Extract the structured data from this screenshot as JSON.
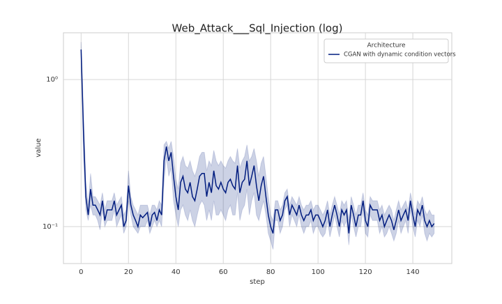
{
  "chart_data": {
    "type": "line",
    "title": "Web_Attack___Sql_Injection (log)",
    "xlabel": "step",
    "ylabel": "value",
    "x": [
      0,
      1,
      2,
      3,
      4,
      5,
      6,
      7,
      8,
      9,
      10,
      11,
      12,
      13,
      14,
      15,
      16,
      17,
      18,
      19,
      20,
      21,
      22,
      23,
      24,
      25,
      26,
      27,
      28,
      29,
      30,
      31,
      32,
      33,
      34,
      35,
      36,
      37,
      38,
      39,
      40,
      41,
      42,
      43,
      44,
      45,
      46,
      47,
      48,
      49,
      50,
      51,
      52,
      53,
      54,
      55,
      56,
      57,
      58,
      59,
      60,
      61,
      62,
      63,
      64,
      65,
      66,
      67,
      68,
      69,
      70,
      71,
      72,
      73,
      74,
      75,
      76,
      77,
      78,
      79,
      80,
      81,
      82,
      83,
      84,
      85,
      86,
      87,
      88,
      89,
      90,
      91,
      92,
      93,
      94,
      95,
      96,
      97,
      98,
      99,
      100,
      101,
      102,
      103,
      104,
      105,
      106,
      107,
      108,
      109,
      110,
      111,
      112,
      113,
      114,
      115,
      116,
      117,
      118,
      119,
      120,
      121,
      122,
      123,
      124,
      125,
      126,
      127,
      128,
      129,
      130,
      131,
      132,
      133,
      134,
      135,
      136,
      137,
      138,
      139,
      140,
      141,
      142,
      143,
      144,
      145,
      146,
      147,
      148,
      149
    ],
    "series": [
      {
        "name": "CGAN with dynamic condition vectors",
        "color": "#001c7f",
        "values": [
          1.6,
          0.45,
          0.16,
          0.12,
          0.18,
          0.14,
          0.14,
          0.13,
          0.12,
          0.15,
          0.11,
          0.13,
          0.13,
          0.13,
          0.15,
          0.12,
          0.13,
          0.14,
          0.1,
          0.11,
          0.19,
          0.14,
          0.12,
          0.11,
          0.1,
          0.12,
          0.115,
          0.12,
          0.125,
          0.1,
          0.12,
          0.125,
          0.11,
          0.13,
          0.12,
          0.28,
          0.35,
          0.28,
          0.32,
          0.22,
          0.16,
          0.13,
          0.2,
          0.22,
          0.18,
          0.17,
          0.2,
          0.16,
          0.15,
          0.18,
          0.22,
          0.23,
          0.23,
          0.16,
          0.2,
          0.17,
          0.24,
          0.19,
          0.18,
          0.2,
          0.18,
          0.17,
          0.2,
          0.21,
          0.19,
          0.18,
          0.26,
          0.17,
          0.2,
          0.21,
          0.28,
          0.19,
          0.22,
          0.26,
          0.19,
          0.15,
          0.19,
          0.22,
          0.16,
          0.12,
          0.1,
          0.09,
          0.13,
          0.13,
          0.11,
          0.12,
          0.15,
          0.16,
          0.12,
          0.14,
          0.13,
          0.12,
          0.14,
          0.12,
          0.11,
          0.12,
          0.12,
          0.13,
          0.11,
          0.12,
          0.12,
          0.11,
          0.1,
          0.11,
          0.13,
          0.1,
          0.12,
          0.14,
          0.12,
          0.1,
          0.13,
          0.12,
          0.13,
          0.09,
          0.14,
          0.12,
          0.1,
          0.12,
          0.12,
          0.15,
          0.11,
          0.1,
          0.14,
          0.13,
          0.13,
          0.13,
          0.11,
          0.12,
          0.1,
          0.11,
          0.12,
          0.11,
          0.095,
          0.11,
          0.13,
          0.11,
          0.12,
          0.13,
          0.11,
          0.15,
          0.12,
          0.1,
          0.13,
          0.12,
          0.14,
          0.11,
          0.1,
          0.11,
          0.1,
          0.105
        ],
        "lower": [
          1.45,
          0.3,
          0.13,
          0.11,
          0.14,
          0.12,
          0.12,
          0.11,
          0.095,
          0.13,
          0.1,
          0.11,
          0.11,
          0.11,
          0.13,
          0.1,
          0.11,
          0.12,
          0.09,
          0.1,
          0.15,
          0.12,
          0.1,
          0.095,
          0.09,
          0.1,
          0.1,
          0.1,
          0.11,
          0.09,
          0.1,
          0.11,
          0.1,
          0.11,
          0.1,
          0.2,
          0.3,
          0.22,
          0.25,
          0.15,
          0.12,
          0.1,
          0.13,
          0.14,
          0.12,
          0.11,
          0.13,
          0.11,
          0.1,
          0.12,
          0.14,
          0.15,
          0.14,
          0.11,
          0.13,
          0.11,
          0.15,
          0.12,
          0.12,
          0.13,
          0.12,
          0.11,
          0.13,
          0.14,
          0.12,
          0.12,
          0.17,
          0.11,
          0.13,
          0.14,
          0.18,
          0.12,
          0.15,
          0.17,
          0.12,
          0.11,
          0.13,
          0.15,
          0.12,
          0.09,
          0.08,
          0.07,
          0.11,
          0.11,
          0.09,
          0.1,
          0.13,
          0.14,
          0.1,
          0.12,
          0.11,
          0.1,
          0.12,
          0.1,
          0.09,
          0.1,
          0.1,
          0.11,
          0.09,
          0.1,
          0.1,
          0.09,
          0.085,
          0.09,
          0.11,
          0.085,
          0.1,
          0.12,
          0.1,
          0.085,
          0.11,
          0.1,
          0.11,
          0.075,
          0.12,
          0.1,
          0.085,
          0.1,
          0.1,
          0.13,
          0.09,
          0.085,
          0.12,
          0.11,
          0.11,
          0.11,
          0.09,
          0.1,
          0.085,
          0.09,
          0.1,
          0.09,
          0.08,
          0.09,
          0.11,
          0.09,
          0.1,
          0.11,
          0.09,
          0.13,
          0.1,
          0.085,
          0.11,
          0.1,
          0.12,
          0.09,
          0.08,
          0.09,
          0.085,
          0.09
        ],
        "upper": [
          1.8,
          0.6,
          0.2,
          0.14,
          0.23,
          0.16,
          0.16,
          0.15,
          0.14,
          0.17,
          0.13,
          0.15,
          0.15,
          0.15,
          0.17,
          0.14,
          0.15,
          0.16,
          0.12,
          0.13,
          0.24,
          0.16,
          0.14,
          0.13,
          0.12,
          0.14,
          0.14,
          0.14,
          0.14,
          0.12,
          0.14,
          0.14,
          0.13,
          0.15,
          0.14,
          0.36,
          0.38,
          0.34,
          0.38,
          0.3,
          0.21,
          0.18,
          0.27,
          0.3,
          0.26,
          0.25,
          0.28,
          0.24,
          0.22,
          0.25,
          0.3,
          0.32,
          0.32,
          0.24,
          0.28,
          0.26,
          0.33,
          0.28,
          0.26,
          0.28,
          0.26,
          0.25,
          0.28,
          0.3,
          0.28,
          0.27,
          0.34,
          0.25,
          0.28,
          0.3,
          0.36,
          0.28,
          0.3,
          0.34,
          0.28,
          0.22,
          0.27,
          0.3,
          0.22,
          0.16,
          0.12,
          0.11,
          0.15,
          0.15,
          0.13,
          0.14,
          0.17,
          0.18,
          0.14,
          0.16,
          0.15,
          0.14,
          0.16,
          0.14,
          0.13,
          0.14,
          0.14,
          0.15,
          0.13,
          0.14,
          0.14,
          0.13,
          0.12,
          0.13,
          0.15,
          0.12,
          0.14,
          0.16,
          0.14,
          0.12,
          0.15,
          0.14,
          0.15,
          0.11,
          0.16,
          0.14,
          0.12,
          0.14,
          0.14,
          0.17,
          0.13,
          0.12,
          0.16,
          0.15,
          0.15,
          0.15,
          0.13,
          0.14,
          0.12,
          0.13,
          0.14,
          0.13,
          0.11,
          0.13,
          0.15,
          0.13,
          0.14,
          0.15,
          0.13,
          0.17,
          0.14,
          0.12,
          0.15,
          0.14,
          0.16,
          0.13,
          0.12,
          0.13,
          0.12,
          0.12
        ]
      }
    ],
    "xlim": [
      -7.45,
      156.45
    ],
    "xticks": [
      0,
      20,
      40,
      60,
      80,
      100,
      120,
      140
    ],
    "ylim": [
      0.0561,
      2.08
    ],
    "yticks": [
      {
        "value": 0.1,
        "label": "10⁻¹"
      },
      {
        "value": 1,
        "label": "10⁰"
      }
    ],
    "log_y": true,
    "grid": true,
    "legend_title": "Architecture",
    "legend_loc": "upper right"
  }
}
